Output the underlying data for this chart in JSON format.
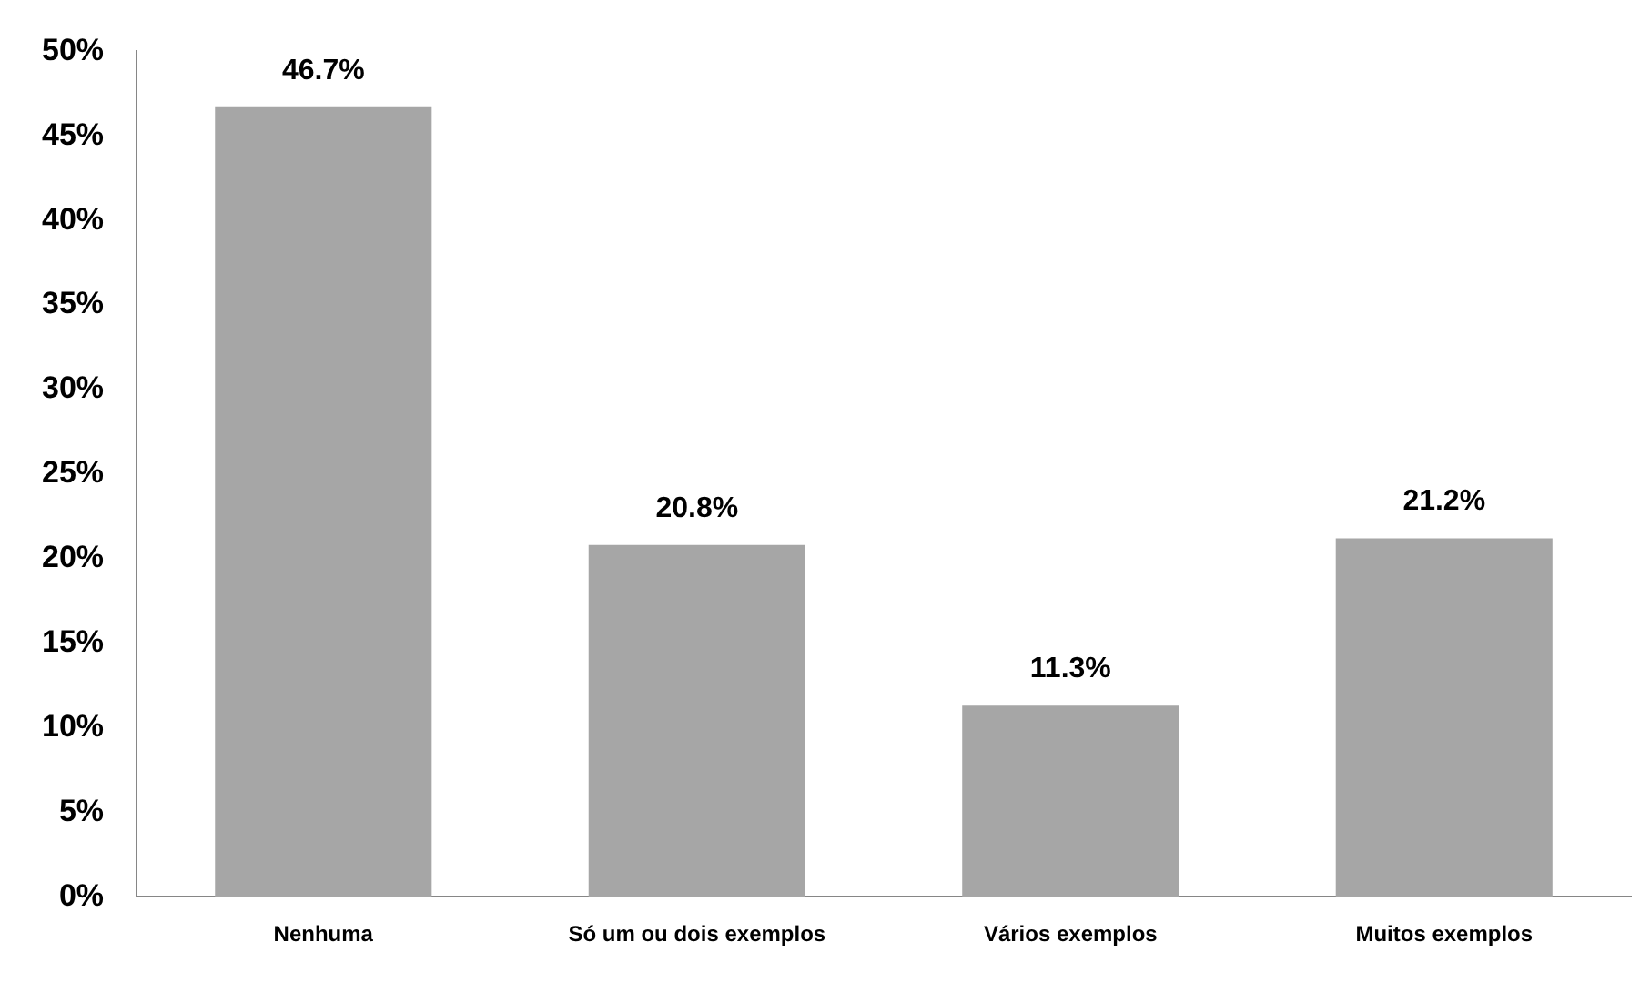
{
  "chart_data": {
    "type": "bar",
    "categories": [
      "Nenhuma",
      "Só um ou dois exemplos",
      "Vários exemplos",
      "Muitos exemplos"
    ],
    "values": [
      46.7,
      20.8,
      11.3,
      21.2
    ],
    "value_labels": [
      "46.7%",
      "20.8%",
      "11.3%",
      "21.2%"
    ],
    "color": "#a6a6a6",
    "ylim": [
      0,
      50
    ],
    "yticks": [
      {
        "value": 0,
        "label": "0%"
      },
      {
        "value": 5,
        "label": "5%"
      },
      {
        "value": 10,
        "label": "10%"
      },
      {
        "value": 15,
        "label": "15%"
      },
      {
        "value": 20,
        "label": "20%"
      },
      {
        "value": 25,
        "label": "25%"
      },
      {
        "value": 30,
        "label": "30%"
      },
      {
        "value": 35,
        "label": "35%"
      },
      {
        "value": 40,
        "label": "40%"
      },
      {
        "value": 45,
        "label": "45%"
      },
      {
        "value": 50,
        "label": "50%"
      }
    ],
    "grid": false,
    "legend": false
  }
}
